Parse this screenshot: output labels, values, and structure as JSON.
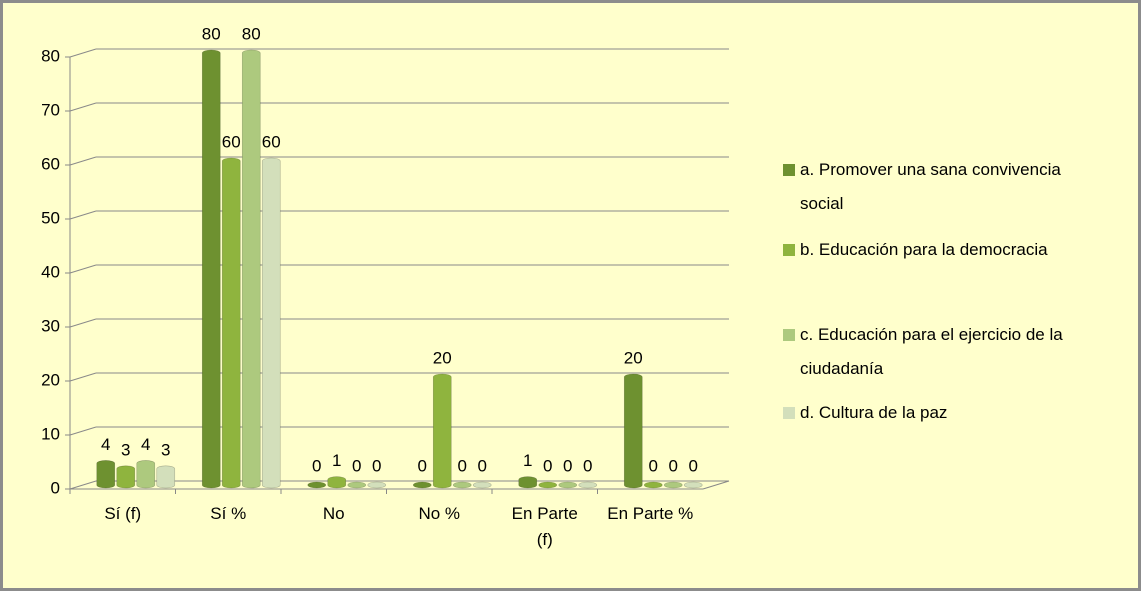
{
  "chart_data": {
    "type": "bar3d",
    "categories": [
      "Sí (f)",
      "Sí %",
      "No",
      "No %",
      "En Parte (f)",
      "En Parte %"
    ],
    "series": [
      {
        "name": "a. Promover una sana convivencia social",
        "color": "#6e9130",
        "values": [
          4,
          80,
          0,
          0,
          1,
          20
        ]
      },
      {
        "name": "b. Educación para la democracia",
        "color": "#8fb43e",
        "values": [
          3,
          60,
          1,
          20,
          0,
          0
        ]
      },
      {
        "name": "c. Educación para el ejercicio de la ciudadanía",
        "color": "#adc97e",
        "values": [
          4,
          80,
          0,
          0,
          0,
          0
        ]
      },
      {
        "name": "d. Cultura de la paz",
        "color": "#d3dfbb",
        "values": [
          3,
          60,
          0,
          0,
          0,
          0
        ]
      }
    ],
    "ylim": [
      0,
      80
    ],
    "yticks": [
      0,
      10,
      20,
      30,
      40,
      50,
      60,
      70,
      80
    ],
    "grid": true,
    "legend": "right"
  }
}
